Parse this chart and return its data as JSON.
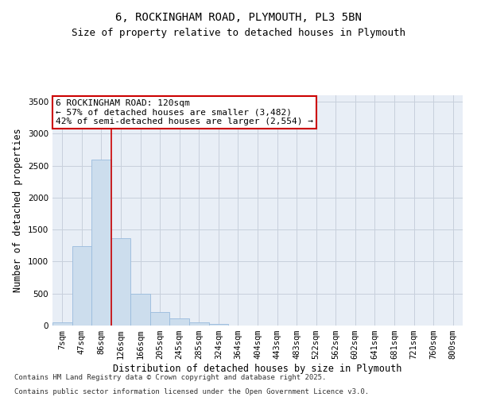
{
  "title_line1": "6, ROCKINGHAM ROAD, PLYMOUTH, PL3 5BN",
  "title_line2": "Size of property relative to detached houses in Plymouth",
  "xlabel": "Distribution of detached houses by size in Plymouth",
  "ylabel": "Number of detached properties",
  "categories": [
    "7sqm",
    "47sqm",
    "86sqm",
    "126sqm",
    "166sqm",
    "205sqm",
    "245sqm",
    "285sqm",
    "324sqm",
    "364sqm",
    "404sqm",
    "443sqm",
    "483sqm",
    "522sqm",
    "562sqm",
    "602sqm",
    "641sqm",
    "681sqm",
    "721sqm",
    "760sqm",
    "800sqm"
  ],
  "bar_heights": [
    45,
    1240,
    2600,
    1360,
    500,
    210,
    110,
    45,
    30,
    5,
    5,
    0,
    0,
    0,
    0,
    0,
    0,
    0,
    0,
    0,
    0
  ],
  "bar_color": "#ccdded",
  "bar_edge_color": "#99bbdd",
  "ylim": [
    0,
    3600
  ],
  "yticks": [
    0,
    500,
    1000,
    1500,
    2000,
    2500,
    3000,
    3500
  ],
  "vline_x": 2.5,
  "vline_color": "#cc0000",
  "annotation_text_line1": "6 ROCKINGHAM ROAD: 120sqm",
  "annotation_text_line2": "← 57% of detached houses are smaller (3,482)",
  "annotation_text_line3": "42% of semi-detached houses are larger (2,554) →",
  "box_color": "white",
  "box_edge_color": "#cc0000",
  "grid_color": "#c8d0dc",
  "background_color": "#e8eef6",
  "footer_line1": "Contains HM Land Registry data © Crown copyright and database right 2025.",
  "footer_line2": "Contains public sector information licensed under the Open Government Licence v3.0.",
  "title_fontsize": 10,
  "subtitle_fontsize": 9,
  "axis_label_fontsize": 8.5,
  "tick_fontsize": 7.5,
  "annotation_fontsize": 8,
  "footer_fontsize": 6.5
}
